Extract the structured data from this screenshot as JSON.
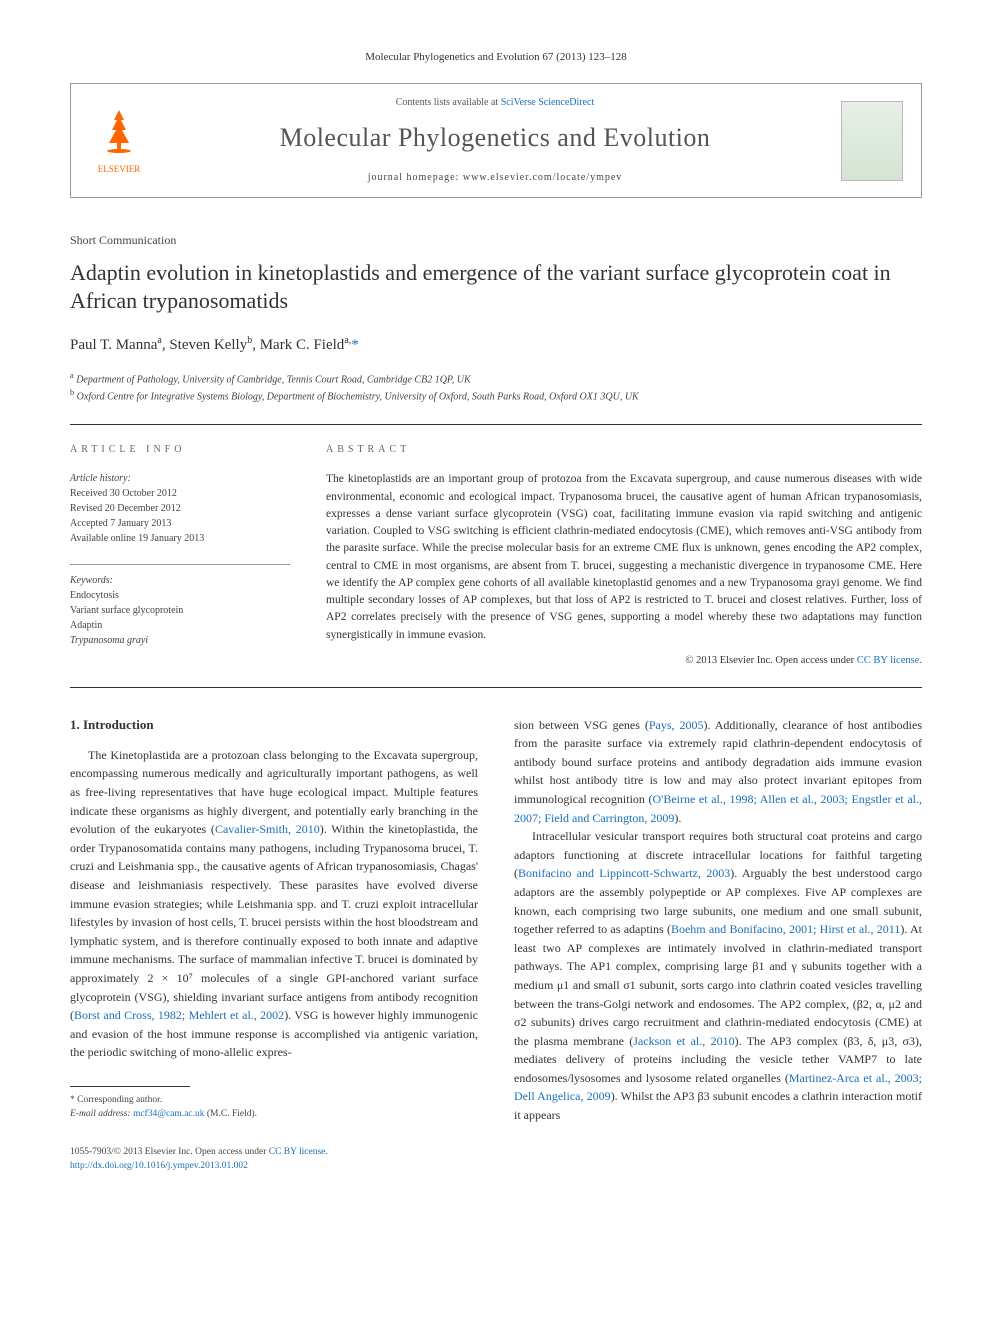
{
  "header": {
    "citation": "Molecular Phylogenetics and Evolution 67 (2013) 123–128"
  },
  "banner": {
    "publisher": "ELSEVIER",
    "contents_prefix": "Contents lists available at ",
    "contents_link": "SciVerse ScienceDirect",
    "journal": "Molecular Phylogenetics and Evolution",
    "homepage_prefix": "journal homepage: ",
    "homepage_url": "www.elsevier.com/locate/ympev"
  },
  "article": {
    "type": "Short Communication",
    "title": "Adaptin evolution in kinetoplastids and emergence of the variant surface glycoprotein coat in African trypanosomatids",
    "authors_html": "Paul T. Manna<sup>a</sup>, Steven Kelly<sup>b</sup>, Mark C. Field<sup>a,</sup>",
    "corr_marker": "*",
    "affiliations": [
      "Department of Pathology, University of Cambridge, Tennis Court Road, Cambridge CB2 1QP, UK",
      "Oxford Centre for Integrative Systems Biology, Department of Biochemistry, University of Oxford, South Parks Road, Oxford OX1 3QU, UK"
    ],
    "aff_sup": [
      "a",
      "b"
    ]
  },
  "info": {
    "label": "ARTICLE INFO",
    "history_label": "Article history:",
    "history": [
      "Received 30 October 2012",
      "Revised 20 December 2012",
      "Accepted 7 January 2013",
      "Available online 19 January 2013"
    ],
    "keywords_label": "Keywords:",
    "keywords": [
      "Endocytosis",
      "Variant surface glycoprotein",
      "Adaptin",
      "Trypanosoma grayi"
    ]
  },
  "abstract": {
    "label": "ABSTRACT",
    "text": "The kinetoplastids are an important group of protozoa from the Excavata supergroup, and cause numerous diseases with wide environmental, economic and ecological impact. Trypanosoma brucei, the causative agent of human African trypanosomiasis, expresses a dense variant surface glycoprotein (VSG) coat, facilitating immune evasion via rapid switching and antigenic variation. Coupled to VSG switching is efficient clathrin-mediated endocytosis (CME), which removes anti-VSG antibody from the parasite surface. While the precise molecular basis for an extreme CME flux is unknown, genes encoding the AP2 complex, central to CME in most organisms, are absent from T. brucei, suggesting a mechanistic divergence in trypanosome CME. Here we identify the AP complex gene cohorts of all available kinetoplastid genomes and a new Trypanosoma grayi genome. We find multiple secondary losses of AP complexes, but that loss of AP2 is restricted to T. brucei and closest relatives. Further, loss of AP2 correlates precisely with the presence of VSG genes, supporting a model whereby these two adaptations may function synergistically in immune evasion.",
    "copyright": "© 2013 Elsevier Inc. ",
    "license_text": "Open access under ",
    "license_link": "CC BY license."
  },
  "body": {
    "section1_title": "1. Introduction",
    "col1_p1_a": "The Kinetoplastida are a protozoan class belonging to the Excavata supergroup, encompassing numerous medically and agriculturally important pathogens, as well as free-living representatives that have huge ecological impact. Multiple features indicate these organisms as highly divergent, and potentially early branching in the evolution of the eukaryotes (",
    "col1_p1_ref1": "Cavalier-Smith, 2010",
    "col1_p1_b": "). Within the kinetoplastida, the order Trypanosomatida contains many pathogens, including Trypanosoma brucei, T. cruzi and Leishmania spp., the causative agents of African trypanosomiasis, Chagas' disease and leishmaniasis respectively. These parasites have evolved diverse immune evasion strategies; while Leishmania spp. and T. cruzi exploit intracellular lifestyles by invasion of host cells, T. brucei persists within the host bloodstream and lymphatic system, and is therefore continually exposed to both innate and adaptive immune mechanisms. The surface of mammalian infective T. brucei is dominated by approximately 2 × 10⁷ molecules of a single GPI-anchored variant surface glycoprotein (VSG), shielding invariant surface antigens from antibody recognition (",
    "col1_p1_ref2": "Borst and Cross, 1982; Mehlert et al., 2002",
    "col1_p1_c": "). VSG is however highly immunogenic and evasion of the host immune response is accomplished via antigenic variation, the periodic switching of mono-allelic expres-",
    "col2_p1_a": "sion between VSG genes (",
    "col2_p1_ref1": "Pays, 2005",
    "col2_p1_b": "). Additionally, clearance of host antibodies from the parasite surface via extremely rapid clathrin-dependent endocytosis of antibody bound surface proteins and antibody degradation aids immune evasion whilst host antibody titre is low and may also protect invariant epitopes from immunological recognition (",
    "col2_p1_ref2": "O'Beirne et al., 1998; Allen et al., 2003; Engstler et al., 2007; Field and Carrington, 2009",
    "col2_p1_c": ").",
    "col2_p2_a": "Intracellular vesicular transport requires both structural coat proteins and cargo adaptors functioning at discrete intracellular locations for faithful targeting (",
    "col2_p2_ref1": "Bonifacino and Lippincott-Schwartz, 2003",
    "col2_p2_b": "). Arguably the best understood cargo adaptors are the assembly polypeptide or AP complexes. Five AP complexes are known, each comprising two large subunits, one medium and one small subunit, together referred to as adaptins (",
    "col2_p2_ref2": "Boehm and Bonifacino, 2001; Hirst et al., 2011",
    "col2_p2_c": "). At least two AP complexes are intimately involved in clathrin-mediated transport pathways. The AP1 complex, comprising large β1 and γ subunits together with a medium μ1 and small σ1 subunit, sorts cargo into clathrin coated vesicles travelling between the trans-Golgi network and endosomes. The AP2 complex, (β2, α, μ2 and σ2 subunits) drives cargo recruitment and clathrin-mediated endocytosis (CME) at the plasma membrane (",
    "col2_p2_ref3": "Jackson et al., 2010",
    "col2_p2_d": "). The AP3 complex (β3, δ, μ3, σ3), mediates delivery of proteins including the vesicle tether VAMP7 to late endosomes/lysosomes and lysosome related organelles (",
    "col2_p2_ref4": "Martinez-Arca et al., 2003; Dell Angelica, 2009",
    "col2_p2_e": "). Whilst the AP3 β3 subunit encodes a clathrin interaction motif it appears"
  },
  "footnote": {
    "corr_label": "* Corresponding author.",
    "email_label": "E-mail address: ",
    "email": "mcf34@cam.ac.uk",
    "email_suffix": " (M.C. Field)."
  },
  "footer": {
    "left_line1": "1055-7903/© 2013 Elsevier Inc. ",
    "left_license_text": "Open access under ",
    "left_license_link": "CC BY license.",
    "left_line2_prefix": "http://dx.doi.org/",
    "left_line2_doi": "10.1016/j.ympev.2013.01.002"
  },
  "colors": {
    "link": "#1a6fb8",
    "text": "#333333",
    "muted": "#666666",
    "elsevier": "#ff6600"
  }
}
